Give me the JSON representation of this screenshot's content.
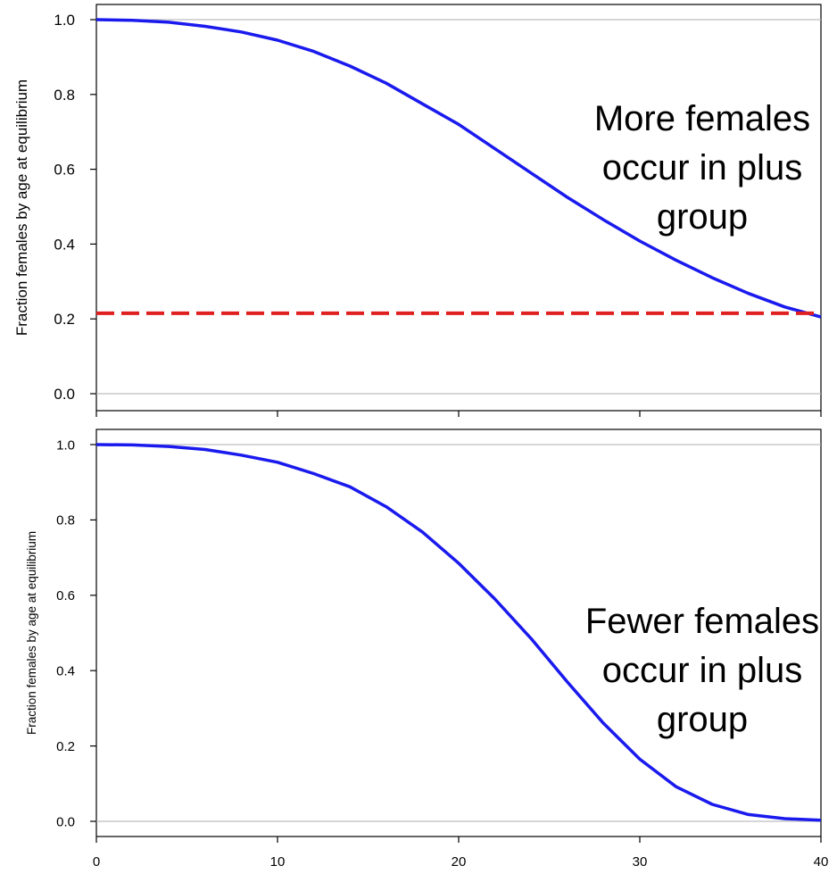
{
  "chart_data": [
    {
      "type": "line",
      "ylabel": "Fraction females by age at equilibrium",
      "xlabel": "",
      "xlim": [
        0,
        40
      ],
      "ylim": [
        0,
        1
      ],
      "yticks": [
        "0.0",
        "0.2",
        "0.4",
        "0.6",
        "0.8",
        "1.0"
      ],
      "xticks": [
        "0",
        "10",
        "20",
        "30",
        "40"
      ],
      "grid": "horizontal lines at 0 and 1",
      "annotation": [
        "More females",
        "occur in plus",
        "group"
      ],
      "series": [
        {
          "color": "#1a1aee",
          "x": [
            0,
            2,
            4,
            6,
            8,
            10,
            12,
            14,
            16,
            18,
            20,
            22,
            24,
            26,
            28,
            30,
            32,
            34,
            36,
            38,
            40
          ],
          "y": [
            1.0,
            0.998,
            0.993,
            0.982,
            0.967,
            0.945,
            0.915,
            0.876,
            0.83,
            0.775,
            0.72,
            0.655,
            0.59,
            0.525,
            0.465,
            0.408,
            0.357,
            0.31,
            0.268,
            0.232,
            0.205
          ]
        },
        {
          "color": "#e02020",
          "style": "dashed",
          "x": [
            0,
            40
          ],
          "y": [
            0.215,
            0.215
          ]
        }
      ]
    },
    {
      "type": "line",
      "ylabel": "Fraction females by age at equilibrium",
      "xlabel": "",
      "xlim": [
        0,
        40
      ],
      "ylim": [
        0,
        1
      ],
      "yticks": [
        "0.0",
        "0.2",
        "0.4",
        "0.6",
        "0.8",
        "1.0"
      ],
      "xticks": [
        "0",
        "10",
        "20",
        "30",
        "40"
      ],
      "grid": "horizontal lines at 0 and 1",
      "annotation": [
        "Fewer females",
        "occur in plus",
        "group"
      ],
      "series": [
        {
          "color": "#1a1aee",
          "x": [
            0,
            2,
            4,
            6,
            8,
            10,
            12,
            14,
            16,
            18,
            20,
            22,
            24,
            26,
            28,
            30,
            32,
            34,
            36,
            38,
            40
          ],
          "y": [
            1.0,
            0.999,
            0.995,
            0.987,
            0.972,
            0.953,
            0.923,
            0.888,
            0.835,
            0.768,
            0.685,
            0.59,
            0.485,
            0.37,
            0.26,
            0.165,
            0.092,
            0.045,
            0.018,
            0.007,
            0.003
          ]
        }
      ]
    }
  ]
}
